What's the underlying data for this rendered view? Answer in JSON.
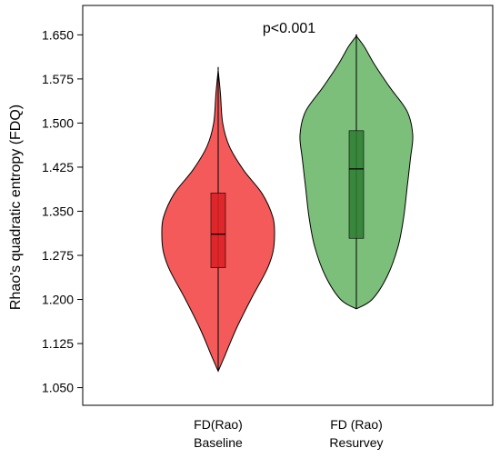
{
  "chart_data": {
    "type": "violin",
    "ylabel": "Rhao's quadratic entropy (FDQ)",
    "ylim": [
      1.02,
      1.7
    ],
    "yticks": [
      "1.050",
      "1.125",
      "1.200",
      "1.275",
      "1.350",
      "1.425",
      "1.500",
      "1.575",
      "1.650"
    ],
    "annotation": "p<0.001",
    "grid": false,
    "legend": "none",
    "categories": [
      {
        "line1": "FD(Rao)",
        "line2": "Baseline"
      },
      {
        "line1": "FD (Rao)",
        "line2": "Resurvey"
      }
    ],
    "series": [
      {
        "color": "#f55a5a",
        "box_color": "#d91e22",
        "min": 1.078,
        "q1": 1.254,
        "median": 1.311,
        "q3": 1.381,
        "max": 1.59,
        "density": [
          [
            1.078,
            0.0
          ],
          [
            1.1,
            0.1
          ],
          [
            1.15,
            0.32
          ],
          [
            1.2,
            0.58
          ],
          [
            1.25,
            0.86
          ],
          [
            1.28,
            0.97
          ],
          [
            1.31,
            1.0
          ],
          [
            1.34,
            0.97
          ],
          [
            1.38,
            0.78
          ],
          [
            1.42,
            0.45
          ],
          [
            1.46,
            0.2
          ],
          [
            1.5,
            0.08
          ],
          [
            1.55,
            0.04
          ],
          [
            1.59,
            0.0
          ]
        ]
      },
      {
        "color": "#7bbf7a",
        "box_color": "#2e7d32",
        "min": 1.184,
        "q1": 1.304,
        "median": 1.422,
        "q3": 1.487,
        "max": 1.648,
        "density": [
          [
            1.184,
            0.0
          ],
          [
            1.2,
            0.28
          ],
          [
            1.24,
            0.55
          ],
          [
            1.29,
            0.74
          ],
          [
            1.34,
            0.84
          ],
          [
            1.39,
            0.9
          ],
          [
            1.44,
            0.96
          ],
          [
            1.48,
            1.0
          ],
          [
            1.52,
            0.9
          ],
          [
            1.56,
            0.6
          ],
          [
            1.6,
            0.32
          ],
          [
            1.63,
            0.14
          ],
          [
            1.648,
            0.0
          ]
        ]
      }
    ]
  }
}
